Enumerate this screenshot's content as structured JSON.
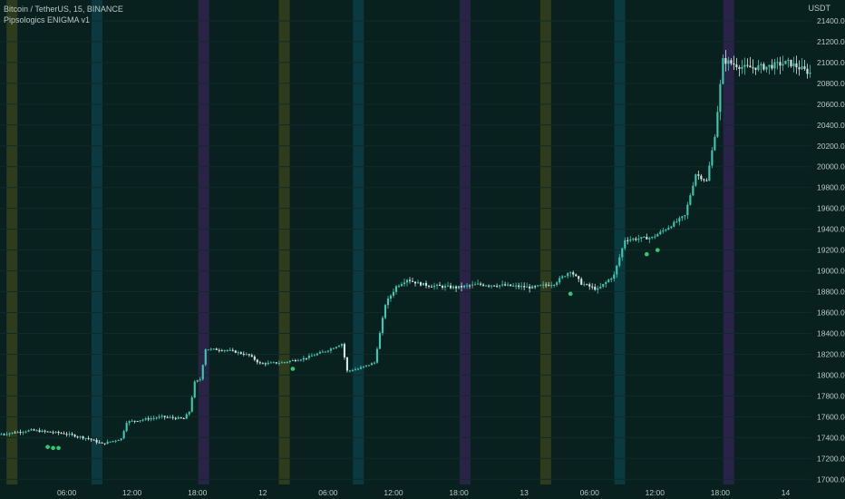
{
  "symbol_line": "Bitcoin / TetherUS, 15, BINANCE",
  "indicator_line": "Pipsologics ENIGMA v1",
  "currency": "USDT",
  "colors": {
    "background": "#08211e",
    "candle": "#3fc8b0",
    "candle_down": "#d8e6e2",
    "signal_dot": "#2ecc71",
    "session_yellow": "#2e3c1c",
    "session_teal": "#0a3a3f",
    "session_purple": "#2a2348",
    "axis_text": "#b9c6c4"
  },
  "chart_data": {
    "type": "candlestick",
    "ylim": [
      16950,
      21600
    ],
    "y_ticks": [
      17000,
      17200,
      17400,
      17600,
      17800,
      18000,
      18200,
      18400,
      18600,
      18800,
      19000,
      19200,
      19400,
      19600,
      19800,
      20000,
      20200,
      20400,
      20600,
      20800,
      21000,
      21200,
      21400
    ],
    "y_tick_labels": [
      "17000.00",
      "17200.00",
      "17400.00",
      "17600.00",
      "17800.00",
      "18000.00",
      "18200.00",
      "18400.00",
      "18600.00",
      "18800.00",
      "19000.00",
      "19200.00",
      "19400.00",
      "19600.00",
      "19800.00",
      "20000.00",
      "20200.00",
      "20400.00",
      "20600.00",
      "20800.00",
      "21000.00",
      "21200.00",
      "21400.00"
    ],
    "x_tick_labels": [
      "06:00",
      "12:00",
      "18:00",
      "12",
      "06:00",
      "12:00",
      "18:00",
      "13",
      "06:00",
      "12:00",
      "18:00",
      "14"
    ],
    "x_tick_bars": [
      24,
      48,
      72,
      96,
      120,
      144,
      168,
      192,
      216,
      240,
      264,
      288
    ],
    "bars_total": 298,
    "session_bands": [
      {
        "color": "yellow",
        "start_bar": 2.4,
        "end_bar": 6.4
      },
      {
        "color": "teal",
        "start_bar": 33.6,
        "end_bar": 37.6
      },
      {
        "color": "purple",
        "start_bar": 72.8,
        "end_bar": 76.8
      },
      {
        "color": "yellow",
        "start_bar": 102.4,
        "end_bar": 106.4
      },
      {
        "color": "teal",
        "start_bar": 129.6,
        "end_bar": 133.6
      },
      {
        "color": "purple",
        "start_bar": 168.8,
        "end_bar": 172.8
      },
      {
        "color": "yellow",
        "start_bar": 198.4,
        "end_bar": 202.4
      },
      {
        "color": "teal",
        "start_bar": 225.6,
        "end_bar": 229.6
      },
      {
        "color": "purple",
        "start_bar": 265.6,
        "end_bar": 269.6
      }
    ],
    "price_path": [
      [
        0,
        17430
      ],
      [
        12,
        17470
      ],
      [
        24,
        17440
      ],
      [
        33,
        17390
      ],
      [
        38,
        17340
      ],
      [
        45,
        17390
      ],
      [
        47,
        17550
      ],
      [
        60,
        17600
      ],
      [
        68,
        17580
      ],
      [
        70,
        17650
      ],
      [
        72,
        17930
      ],
      [
        74,
        17960
      ],
      [
        76,
        18250
      ],
      [
        84,
        18240
      ],
      [
        92,
        18190
      ],
      [
        96,
        18110
      ],
      [
        104,
        18120
      ],
      [
        112,
        18160
      ],
      [
        120,
        18230
      ],
      [
        126,
        18300
      ],
      [
        128,
        18040
      ],
      [
        132,
        18060
      ],
      [
        138,
        18120
      ],
      [
        142,
        18680
      ],
      [
        146,
        18850
      ],
      [
        150,
        18920
      ],
      [
        154,
        18880
      ],
      [
        158,
        18860
      ],
      [
        168,
        18840
      ],
      [
        176,
        18870
      ],
      [
        186,
        18860
      ],
      [
        196,
        18840
      ],
      [
        204,
        18880
      ],
      [
        210,
        19000
      ],
      [
        214,
        18880
      ],
      [
        220,
        18820
      ],
      [
        226,
        18960
      ],
      [
        230,
        19300
      ],
      [
        240,
        19320
      ],
      [
        246,
        19420
      ],
      [
        252,
        19530
      ],
      [
        256,
        19930
      ],
      [
        260,
        19860
      ],
      [
        263,
        20300
      ],
      [
        266,
        21020
      ],
      [
        274,
        20950
      ],
      [
        282,
        20960
      ],
      [
        290,
        21000
      ],
      [
        298,
        20900
      ]
    ],
    "signal_dots": [
      {
        "bar": 17,
        "price": 17310
      },
      {
        "bar": 19,
        "price": 17300
      },
      {
        "bar": 21,
        "price": 17300
      },
      {
        "bar": 107,
        "price": 18060
      },
      {
        "bar": 209,
        "price": 18780
      },
      {
        "bar": 237,
        "price": 19160
      },
      {
        "bar": 241,
        "price": 19200
      }
    ]
  }
}
